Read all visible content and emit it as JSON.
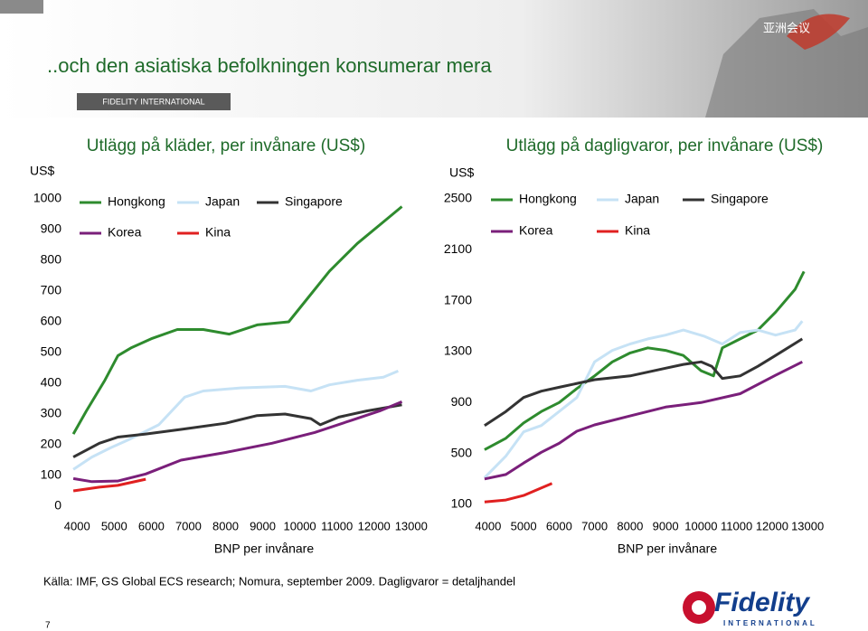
{
  "header": {
    "title": "..och den asiatiska befolkningen konsumerar mera",
    "tag": "FIDELITY INTERNATIONAL",
    "badge": "亚洲会议"
  },
  "chart_data": [
    {
      "type": "line",
      "title": "Utlägg på kläder, per invånare (US$)",
      "y_unit": "US$",
      "xlabel": "BNP per invånare",
      "xlim": [
        3800,
        13200
      ],
      "ylim": [
        0,
        1000
      ],
      "xticks": [
        4000,
        5000,
        6000,
        7000,
        8000,
        9000,
        10000,
        11000,
        12000,
        13000
      ],
      "yticks": [
        0,
        100,
        200,
        300,
        400,
        500,
        600,
        700,
        800,
        900,
        1000
      ],
      "series": [
        {
          "name": "Hongkong",
          "color": "#2e8b2e",
          "x": [
            3900,
            4250,
            4750,
            5100,
            5450,
            6000,
            6700,
            7400,
            8100,
            8850,
            9700,
            10200,
            10800,
            11550,
            12250,
            12750
          ],
          "values": [
            235,
            310,
            410,
            490,
            515,
            545,
            575,
            575,
            560,
            590,
            600,
            675,
            765,
            855,
            925,
            975
          ]
        },
        {
          "name": "Japan",
          "color": "#c6e2f5",
          "x": [
            3900,
            4400,
            4900,
            5450,
            6200,
            6900,
            7400,
            8400,
            9600,
            10300,
            10800,
            11550,
            12250,
            12650
          ],
          "values": [
            120,
            160,
            190,
            220,
            265,
            355,
            375,
            385,
            390,
            375,
            395,
            410,
            420,
            440
          ]
        },
        {
          "name": "Singapore",
          "color": "#333333",
          "x": [
            3900,
            4600,
            5100,
            5850,
            6800,
            8000,
            8850,
            9600,
            10300,
            10550,
            11050,
            11800,
            12750
          ],
          "values": [
            160,
            205,
            225,
            235,
            250,
            270,
            295,
            300,
            285,
            265,
            290,
            310,
            330
          ]
        },
        {
          "name": "Korea",
          "color": "#7a1f7a",
          "x": [
            3900,
            4400,
            5100,
            5850,
            6800,
            8000,
            9250,
            10400,
            11400,
            12150,
            12750
          ],
          "values": [
            90,
            80,
            82,
            105,
            150,
            175,
            205,
            240,
            280,
            310,
            340
          ]
        },
        {
          "name": "Kina",
          "color": "#e02020",
          "x": [
            3900,
            4600,
            5100,
            5850
          ],
          "values": [
            50,
            62,
            68,
            88
          ]
        }
      ]
    },
    {
      "type": "line",
      "title": "Utlägg på dagligvaror, per invånare (US$)",
      "y_unit": "US$",
      "xlabel": "BNP per invånare",
      "xlim": [
        3800,
        13200
      ],
      "ylim": [
        100,
        2500
      ],
      "xticks": [
        4000,
        5000,
        6000,
        7000,
        8000,
        9000,
        10000,
        11000,
        12000,
        13000
      ],
      "yticks": [
        100,
        500,
        900,
        1300,
        1700,
        2100,
        2500
      ],
      "series": [
        {
          "name": "Hongkong",
          "color": "#2e8b2e",
          "x": [
            3900,
            4500,
            5000,
            5500,
            6000,
            6500,
            7000,
            7500,
            8000,
            8500,
            9000,
            9500,
            10000,
            10350,
            10600,
            11100,
            11600,
            12100,
            12650,
            12900
          ],
          "values": [
            530,
            620,
            740,
            830,
            900,
            1010,
            1110,
            1220,
            1290,
            1330,
            1310,
            1270,
            1150,
            1110,
            1330,
            1400,
            1470,
            1610,
            1790,
            1930
          ]
        },
        {
          "name": "Japan",
          "color": "#c6e2f5",
          "x": [
            3900,
            4500,
            5000,
            5500,
            6000,
            6500,
            7000,
            7500,
            8000,
            8500,
            9000,
            9500,
            10100,
            10600,
            11100,
            11600,
            12100,
            12650,
            12850
          ],
          "values": [
            310,
            480,
            670,
            720,
            830,
            940,
            1220,
            1310,
            1360,
            1400,
            1430,
            1470,
            1420,
            1360,
            1450,
            1470,
            1430,
            1470,
            1540
          ]
        },
        {
          "name": "Singapore",
          "color": "#333333",
          "x": [
            3900,
            4500,
            5000,
            5500,
            6000,
            7000,
            8000,
            9000,
            9500,
            10000,
            10300,
            10600,
            11100,
            11600,
            12100,
            12850
          ],
          "values": [
            720,
            830,
            940,
            990,
            1020,
            1080,
            1110,
            1170,
            1200,
            1220,
            1185,
            1090,
            1110,
            1185,
            1270,
            1400
          ]
        },
        {
          "name": "Korea",
          "color": "#7a1f7a",
          "x": [
            3900,
            4500,
            5000,
            5500,
            6000,
            6500,
            7000,
            8000,
            9000,
            10000,
            11100,
            12100,
            12850
          ],
          "values": [
            300,
            335,
            425,
            510,
            580,
            675,
            725,
            795,
            865,
            900,
            970,
            1115,
            1220
          ]
        },
        {
          "name": "Kina",
          "color": "#e02020",
          "x": [
            3900,
            4500,
            5000,
            5500,
            5800
          ],
          "values": [
            120,
            135,
            170,
            230,
            265
          ]
        }
      ]
    }
  ],
  "source": "Källa: IMF, GS Global ECS research; Nomura, september 2009. Dagligvaror = detaljhandel",
  "page_number": "7",
  "logo": {
    "name": "Fidelity",
    "sub": "INTERNATIONAL"
  }
}
